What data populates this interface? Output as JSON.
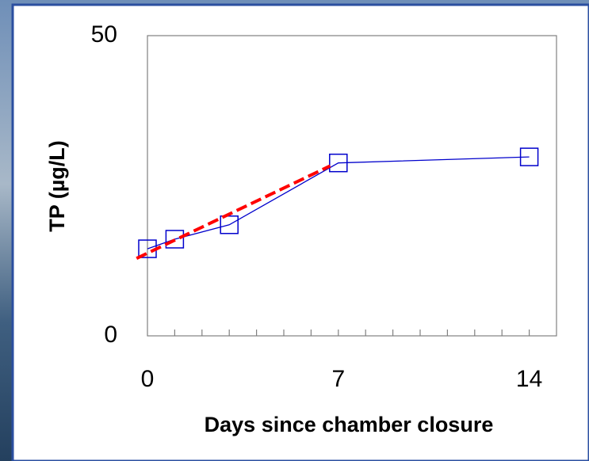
{
  "chart_data": {
    "type": "line",
    "x_label": "Days since chamber closure",
    "y_label": "TP (µg/L)",
    "xlim": [
      0,
      15
    ],
    "ylim": [
      0,
      50
    ],
    "xticks": [
      0,
      7,
      14
    ],
    "xminorticks": [
      1,
      2,
      3,
      4,
      5,
      6,
      7,
      8,
      9,
      10,
      11,
      12,
      13,
      14
    ],
    "yticks": [
      0,
      50
    ],
    "series": [
      {
        "color": "#0000cc",
        "marker": "square",
        "x": [
          0,
          1,
          3,
          7,
          14
        ],
        "values": [
          14.5,
          16.1,
          18.5,
          28.8,
          29.8
        ]
      },
      {
        "color": "#ff0000",
        "dashed": true,
        "x": [
          -0.4,
          6.7
        ],
        "values": [
          12.9,
          28.3
        ]
      }
    ]
  }
}
